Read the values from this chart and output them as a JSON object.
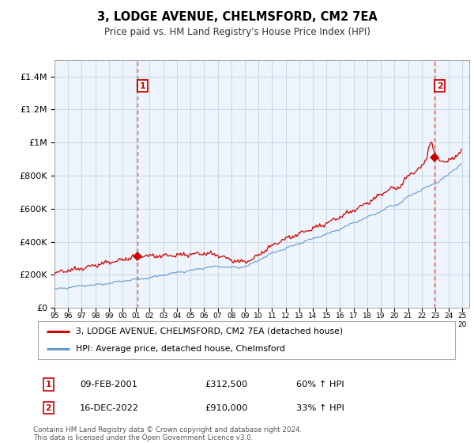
{
  "title": "3, LODGE AVENUE, CHELMSFORD, CM2 7EA",
  "subtitle": "Price paid vs. HM Land Registry's House Price Index (HPI)",
  "red_label": "3, LODGE AVENUE, CHELMSFORD, CM2 7EA (detached house)",
  "blue_label": "HPI: Average price, detached house, Chelmsford",
  "annotation1_date": "09-FEB-2001",
  "annotation1_price": "£312,500",
  "annotation1_hpi": "60% ↑ HPI",
  "annotation2_date": "16-DEC-2022",
  "annotation2_price": "£910,000",
  "annotation2_hpi": "33% ↑ HPI",
  "footer": "Contains HM Land Registry data © Crown copyright and database right 2024.\nThis data is licensed under the Open Government Licence v3.0.",
  "red_color": "#cc0000",
  "blue_color": "#6699cc",
  "grid_color": "#c8d8e8",
  "bg_color": "#deeaf5",
  "plot_bg": "#eef4fb",
  "background_color": "#ffffff",
  "ylim": [
    0,
    1500000
  ],
  "yticks": [
    0,
    200000,
    400000,
    600000,
    800000,
    1000000,
    1200000,
    1400000
  ],
  "xlim_start": 1995.0,
  "xlim_end": 2025.5,
  "marker1_x": 2001.11,
  "marker1_y": 312500,
  "marker2_x": 2022.96,
  "marker2_y": 910000
}
